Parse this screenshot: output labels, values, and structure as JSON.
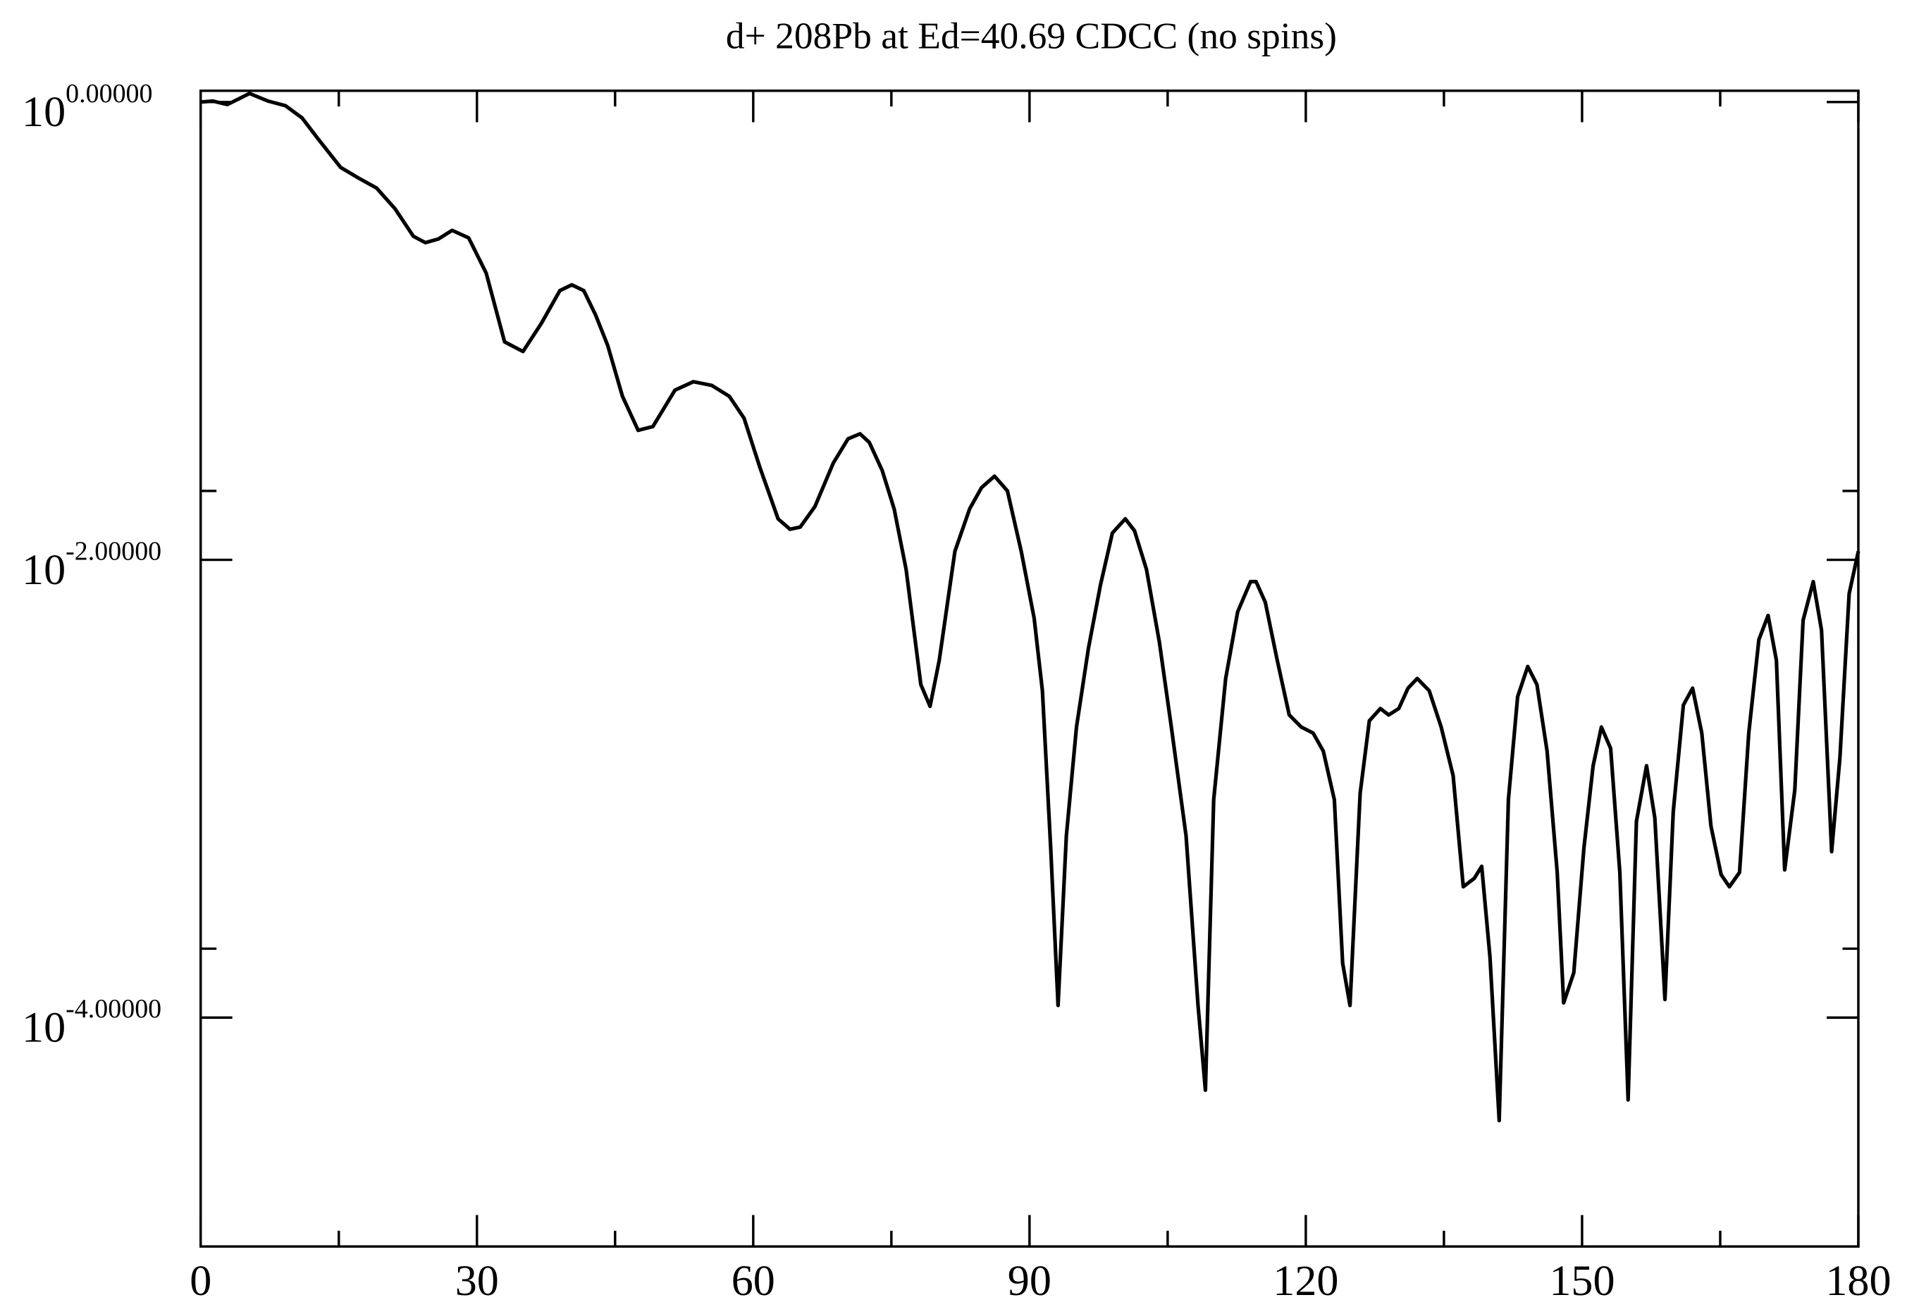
{
  "chart_data": {
    "type": "line",
    "title": "d+ 208Pb at Ed=40.69 CDCC (no spins)",
    "color": "#000000",
    "log_y": true,
    "xlim": [
      0,
      180
    ],
    "xticks": [
      0,
      30,
      60,
      90,
      120,
      150,
      180
    ],
    "xminorticks": [
      15,
      45,
      75,
      105,
      135,
      165
    ],
    "ylim": [
      1e-05,
      1.12
    ],
    "yticks": [
      {
        "value": 1,
        "label": {
          "base": "10",
          "exponent": "0.00000"
        }
      },
      {
        "value": 0.01,
        "label": {
          "base": "10",
          "exponent": "-2.00000"
        }
      },
      {
        "value": 0.0001,
        "label": {
          "base": "10",
          "exponent": "-4.00000"
        }
      }
    ],
    "yminorticks": [
      0.02,
      0.0002
    ],
    "x": [
      0,
      1.3,
      2.9,
      5.3,
      7.3,
      9.2,
      11,
      12.8,
      15.2,
      17.2,
      19.1,
      21.1,
      23.1,
      24.4,
      25.8,
      27.3,
      29.1,
      31,
      33,
      35,
      37,
      39,
      40.3,
      41.6,
      42.9,
      44.2,
      45.8,
      47.5,
      49.1,
      51.5,
      53.5,
      55.5,
      57.4,
      59,
      60.7,
      62.7,
      64,
      65.1,
      66.7,
      68.7,
      70.3,
      71.6,
      72.6,
      74,
      75.3,
      76.6,
      78.2,
      79.2,
      80.2,
      81.9,
      83.5,
      84.8,
      86.2,
      87.6,
      89.1,
      90.5,
      91.4,
      92.3,
      93.1,
      94,
      95.1,
      96.4,
      97.7,
      99,
      100.4,
      101.4,
      102.7,
      104.1,
      105.4,
      107,
      108.3,
      109.1,
      110,
      111.3,
      112.6,
      114,
      114.6,
      115.6,
      116.9,
      118.2,
      119.5,
      120.8,
      121.9,
      123.1,
      124,
      124.8,
      125.9,
      126.9,
      128.1,
      129,
      130.1,
      131.1,
      132.1,
      133.4,
      134.7,
      136,
      137.1,
      138.3,
      139.1,
      140,
      141,
      142,
      143,
      144.1,
      145.1,
      146.2,
      147.3,
      148,
      149.1,
      150.2,
      151.2,
      152.1,
      153.1,
      154.1,
      155,
      155.9,
      157,
      157.9,
      159,
      159.9,
      161,
      162,
      163,
      164,
      165.1,
      166,
      167.1,
      168.1,
      169.2,
      170.2,
      171.1,
      172,
      173.1,
      174,
      175.1,
      176,
      177.1,
      178,
      179,
      180
    ],
    "values": [
      1.0,
      1.01,
      0.975,
      1.09,
      1.01,
      0.964,
      0.853,
      0.686,
      0.518,
      0.464,
      0.421,
      0.342,
      0.259,
      0.243,
      0.252,
      0.275,
      0.255,
      0.179,
      0.0896,
      0.0813,
      0.108,
      0.15,
      0.159,
      0.15,
      0.117,
      0.0864,
      0.0518,
      0.0368,
      0.0382,
      0.0551,
      0.06,
      0.0578,
      0.0518,
      0.0416,
      0.0255,
      0.0151,
      0.0136,
      0.0139,
      0.0171,
      0.0265,
      0.0338,
      0.0355,
      0.0326,
      0.0246,
      0.0167,
      0.00908,
      0.00285,
      0.00229,
      0.00364,
      0.0109,
      0.0167,
      0.0207,
      0.0232,
      0.02,
      0.0109,
      0.00557,
      0.00268,
      0.000551,
      0.000113,
      0.000622,
      0.00186,
      0.00411,
      0.00775,
      0.0131,
      0.0151,
      0.0134,
      0.00908,
      0.00437,
      0.00186,
      0.000622,
      0.000113,
      4.82e-05,
      0.000896,
      0.00303,
      0.00592,
      0.00803,
      0.00803,
      0.00653,
      0.00364,
      0.0021,
      0.00186,
      0.00175,
      0.00146,
      0.000896,
      0.000173,
      0.000113,
      0.000953,
      0.00198,
      0.00224,
      0.0021,
      0.00224,
      0.00275,
      0.00303,
      0.00268,
      0.00186,
      0.00114,
      0.000373,
      0.000406,
      0.000458,
      0.000184,
      3.55e-05,
      0.000896,
      0.00252,
      0.00342,
      0.00285,
      0.00146,
      0.000431,
      0.000116,
      0.000157,
      0.000551,
      0.00126,
      0.00186,
      0.0015,
      0.000431,
      4.37e-05,
      0.000719,
      0.00126,
      0.000746,
      0.00012,
      0.000793,
      0.00232,
      0.00275,
      0.00175,
      0.000685,
      0.000421,
      0.000373,
      0.000431,
      0.00175,
      0.00448,
      0.00571,
      0.00364,
      0.000442,
      0.000988,
      0.00544,
      0.00803,
      0.00493,
      0.000531,
      0.00137,
      0.00711,
      0.0109
    ]
  }
}
